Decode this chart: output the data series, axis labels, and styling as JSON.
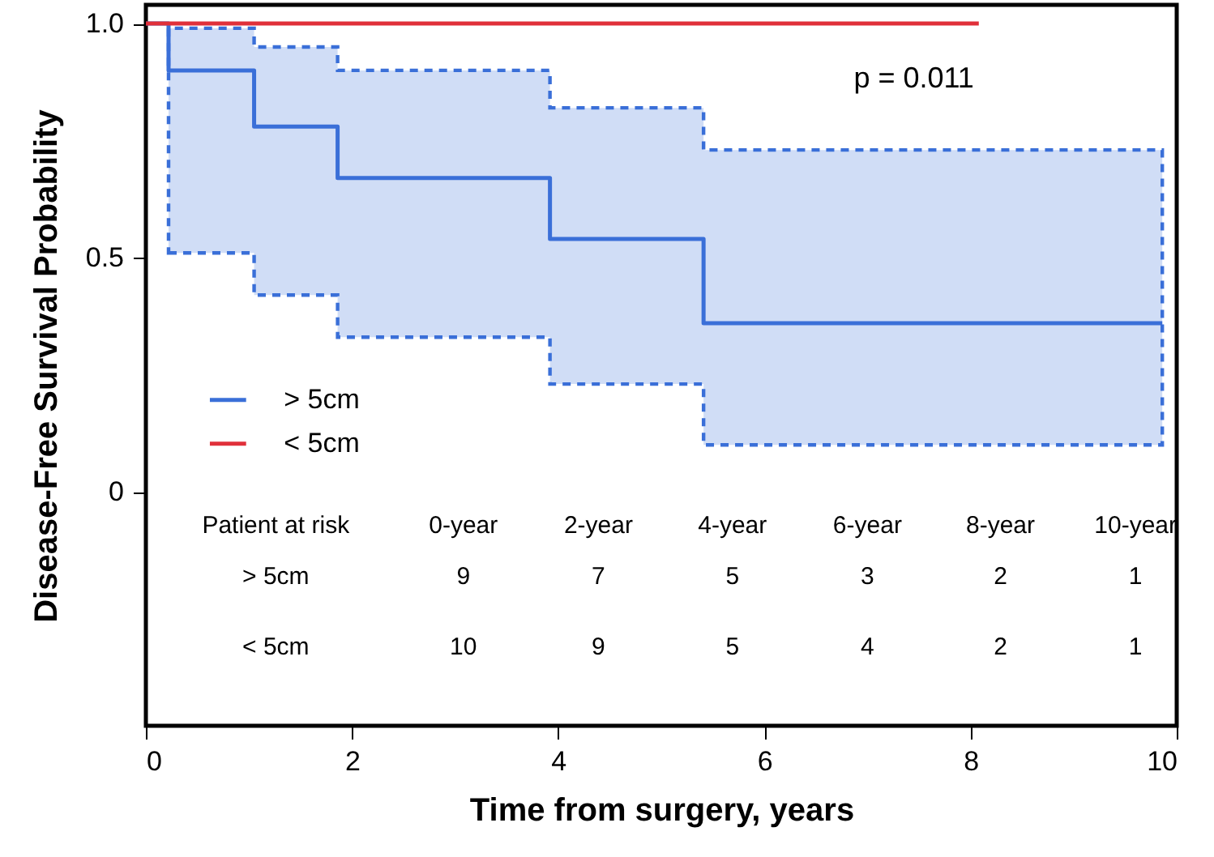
{
  "chart_data": {
    "type": "step",
    "xlabel": "Time from surgery, years",
    "ylabel": "Disease-Free Survival Probability",
    "xlim": [
      0,
      10
    ],
    "xticks": [
      0,
      2,
      4,
      6,
      8,
      10
    ],
    "ylim": [
      -0.5,
      1.04
    ],
    "yticks": [
      0,
      0.5,
      {
        "value": 1,
        "label": "1.0"
      }
    ],
    "series": [
      {
        "name": "> 5cm",
        "color": "#3a6fd8",
        "x": [
          0,
          0.22,
          1.05,
          1.86,
          3.92,
          5.41,
          9.86
        ],
        "values": [
          1,
          0.9,
          0.78,
          0.67,
          0.54,
          0.36,
          0.36
        ],
        "lower": [
          null,
          0.51,
          0.42,
          0.33,
          0.23,
          0.1,
          0.1
        ],
        "upper": [
          null,
          0.99,
          0.95,
          0.9,
          0.82,
          0.73,
          0.73
        ]
      },
      {
        "name": "< 5cm",
        "color": "#e0303a",
        "x": [
          0,
          8.08
        ],
        "values": [
          1,
          1
        ]
      }
    ],
    "legend": "left",
    "grid": false,
    "marker": "none",
    "line_style": "solid",
    "annotations": [
      "p = 0.011",
      "Patient at risk",
      "0-year",
      "2-year",
      "4-year",
      "6-year",
      "8-year",
      "10-year",
      "> 5cm",
      "9",
      "7",
      "5",
      "3",
      "2",
      "1",
      "< 5cm",
      "10",
      "9",
      "5",
      "4",
      "2",
      "1"
    ]
  }
}
